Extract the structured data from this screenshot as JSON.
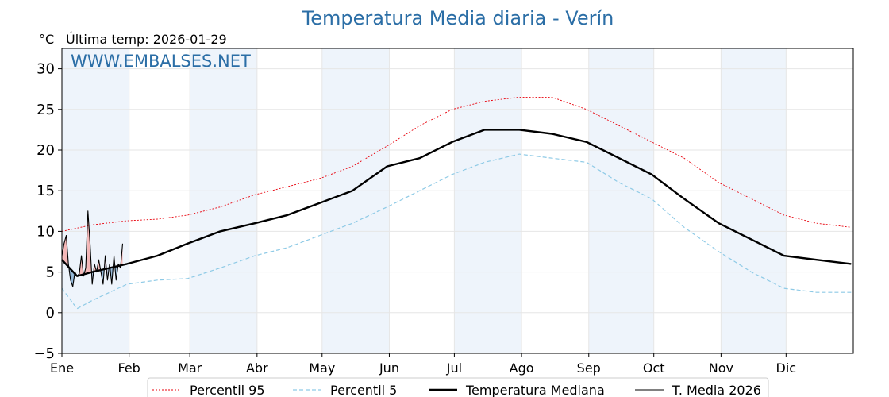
{
  "title": "Temperatura Media diaria - Verín",
  "unit_label": "°C",
  "last_temp_label": "Última temp: 2026-01-29",
  "watermark": "WWW.EMBALSES.NET",
  "colors": {
    "title": "#2b6ea6",
    "p95": "#e8000b",
    "p5": "#8ecae6",
    "median": "#000000",
    "current": "#000000",
    "above_fill": "#f4b6b6",
    "below_fill": "#8fb4d4",
    "month_band": "#eef4fb"
  },
  "chart_data": {
    "type": "line",
    "title": "Temperatura Media diaria - Verín",
    "ylabel": "°C",
    "ylim": [
      -5,
      32.5
    ],
    "yticks": [
      -5,
      0,
      5,
      10,
      15,
      20,
      25,
      30
    ],
    "ytick_labels": [
      "−5",
      "0",
      "5",
      "10",
      "15",
      "20",
      "25",
      "30"
    ],
    "months": [
      "Ene",
      "Feb",
      "Mar",
      "Abr",
      "May",
      "Jun",
      "Jul",
      "Ago",
      "Sep",
      "Oct",
      "Nov",
      "Dic"
    ],
    "month_start_days": [
      1,
      32,
      60,
      91,
      121,
      152,
      182,
      213,
      244,
      274,
      305,
      335
    ],
    "xlim": [
      1,
      366
    ],
    "grid": true,
    "legend_position": "bottom-center",
    "series": [
      {
        "name": "Percentil 95",
        "style": "dotted-red",
        "x": [
          1,
          15,
          31,
          45,
          59,
          74,
          90,
          105,
          120,
          135,
          151,
          166,
          181,
          196,
          212,
          227,
          243,
          258,
          273,
          288,
          304,
          319,
          334,
          349,
          365
        ],
        "y": [
          10,
          10.8,
          11.3,
          11.5,
          12,
          13,
          14.5,
          15.5,
          16.5,
          18,
          20.5,
          23,
          25,
          26,
          26.5,
          26.5,
          25,
          23,
          21,
          19,
          16,
          14,
          12,
          11,
          10.5
        ]
      },
      {
        "name": "Percentil 5",
        "style": "dashed-lightblue",
        "x": [
          1,
          8,
          15,
          31,
          45,
          59,
          74,
          90,
          105,
          120,
          135,
          151,
          166,
          181,
          196,
          212,
          227,
          243,
          258,
          273,
          288,
          304,
          319,
          334,
          349,
          365
        ],
        "y": [
          3,
          0.5,
          1.5,
          3.5,
          4,
          4.2,
          5.5,
          7,
          8,
          9.5,
          11,
          13,
          15,
          17,
          18.5,
          19.5,
          19,
          18.5,
          16,
          14,
          10.5,
          7.5,
          5,
          3,
          2.5,
          2.5
        ]
      },
      {
        "name": "Temperatura Mediana",
        "style": "thick-black",
        "x": [
          1,
          8,
          15,
          31,
          45,
          59,
          74,
          90,
          105,
          120,
          135,
          151,
          166,
          181,
          196,
          212,
          227,
          243,
          258,
          273,
          288,
          304,
          319,
          334,
          349,
          365
        ],
        "y": [
          6.5,
          4.5,
          5,
          6,
          7,
          8.5,
          10,
          11,
          12,
          13.5,
          15,
          18,
          19,
          21,
          22.5,
          22.5,
          22,
          21,
          19,
          17,
          14,
          11,
          9,
          7,
          6.5,
          6
        ]
      },
      {
        "name": "T. Media 2026",
        "style": "thin-black",
        "x": [
          1,
          2,
          3,
          4,
          5,
          6,
          7,
          8,
          9,
          10,
          11,
          12,
          13,
          14,
          15,
          16,
          17,
          18,
          19,
          20,
          21,
          22,
          23,
          24,
          25,
          26,
          27,
          28,
          29
        ],
        "y": [
          7,
          8.5,
          9.5,
          6,
          4,
          3.2,
          5,
          4.5,
          4.8,
          7,
          4.5,
          5.5,
          12.5,
          8.5,
          3.5,
          6,
          5,
          6.5,
          5,
          3.5,
          7,
          4,
          6,
          3.5,
          7,
          4,
          6,
          5.5,
          8.5
        ]
      }
    ]
  }
}
